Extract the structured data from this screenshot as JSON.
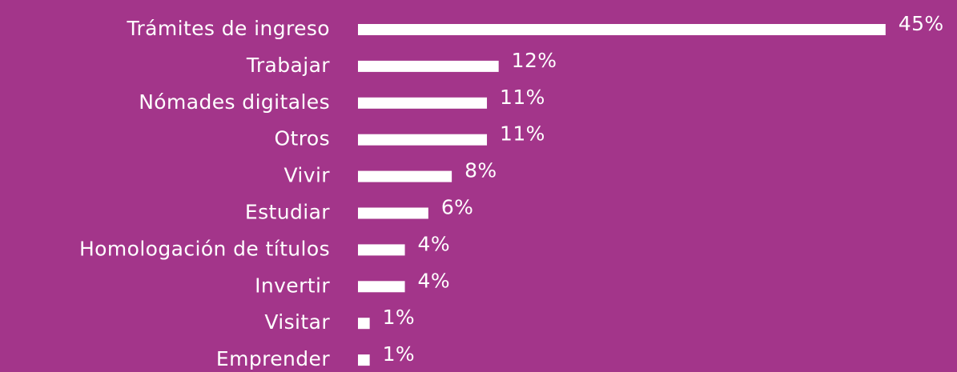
{
  "chart_data": {
    "type": "bar",
    "orientation": "horizontal",
    "categories": [
      "Trámites de ingreso",
      "Trabajar",
      "Nómades digitales",
      "Otros",
      "Vivir",
      "Estudiar",
      "Homologación de títulos",
      "Invertir",
      "Visitar",
      "Emprender"
    ],
    "values": [
      45,
      12,
      11,
      11,
      8,
      6,
      4,
      4,
      1,
      1
    ],
    "value_labels": [
      "45%",
      "12%",
      "11%",
      "11%",
      "8%",
      "6%",
      "4%",
      "4%",
      "1%",
      "1%"
    ],
    "color": "#ffffff",
    "background": "#a3358a"
  }
}
